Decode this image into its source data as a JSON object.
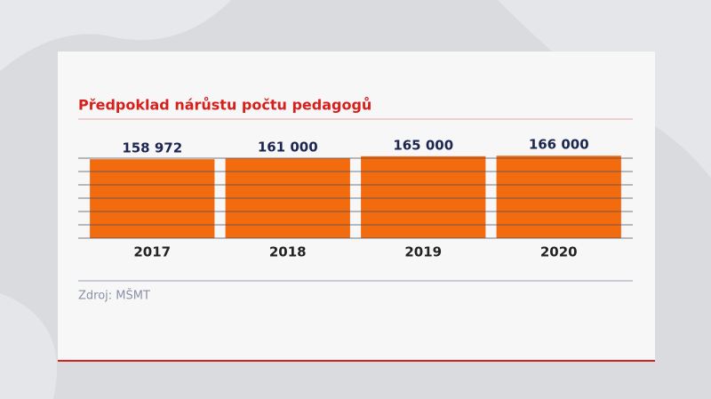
{
  "chart_data": {
    "type": "bar",
    "title": "Předpoklad nárůstu počtu pedagogů",
    "categories": [
      "2017",
      "2018",
      "2019",
      "2020"
    ],
    "values": [
      158972,
      161000,
      165000,
      166000
    ],
    "value_labels": [
      "158 972",
      "161 000",
      "165 000",
      "166 000"
    ],
    "color": "#f26b0f",
    "ylim": [
      0,
      170000
    ],
    "source": "Zdroj: MŠMT"
  }
}
